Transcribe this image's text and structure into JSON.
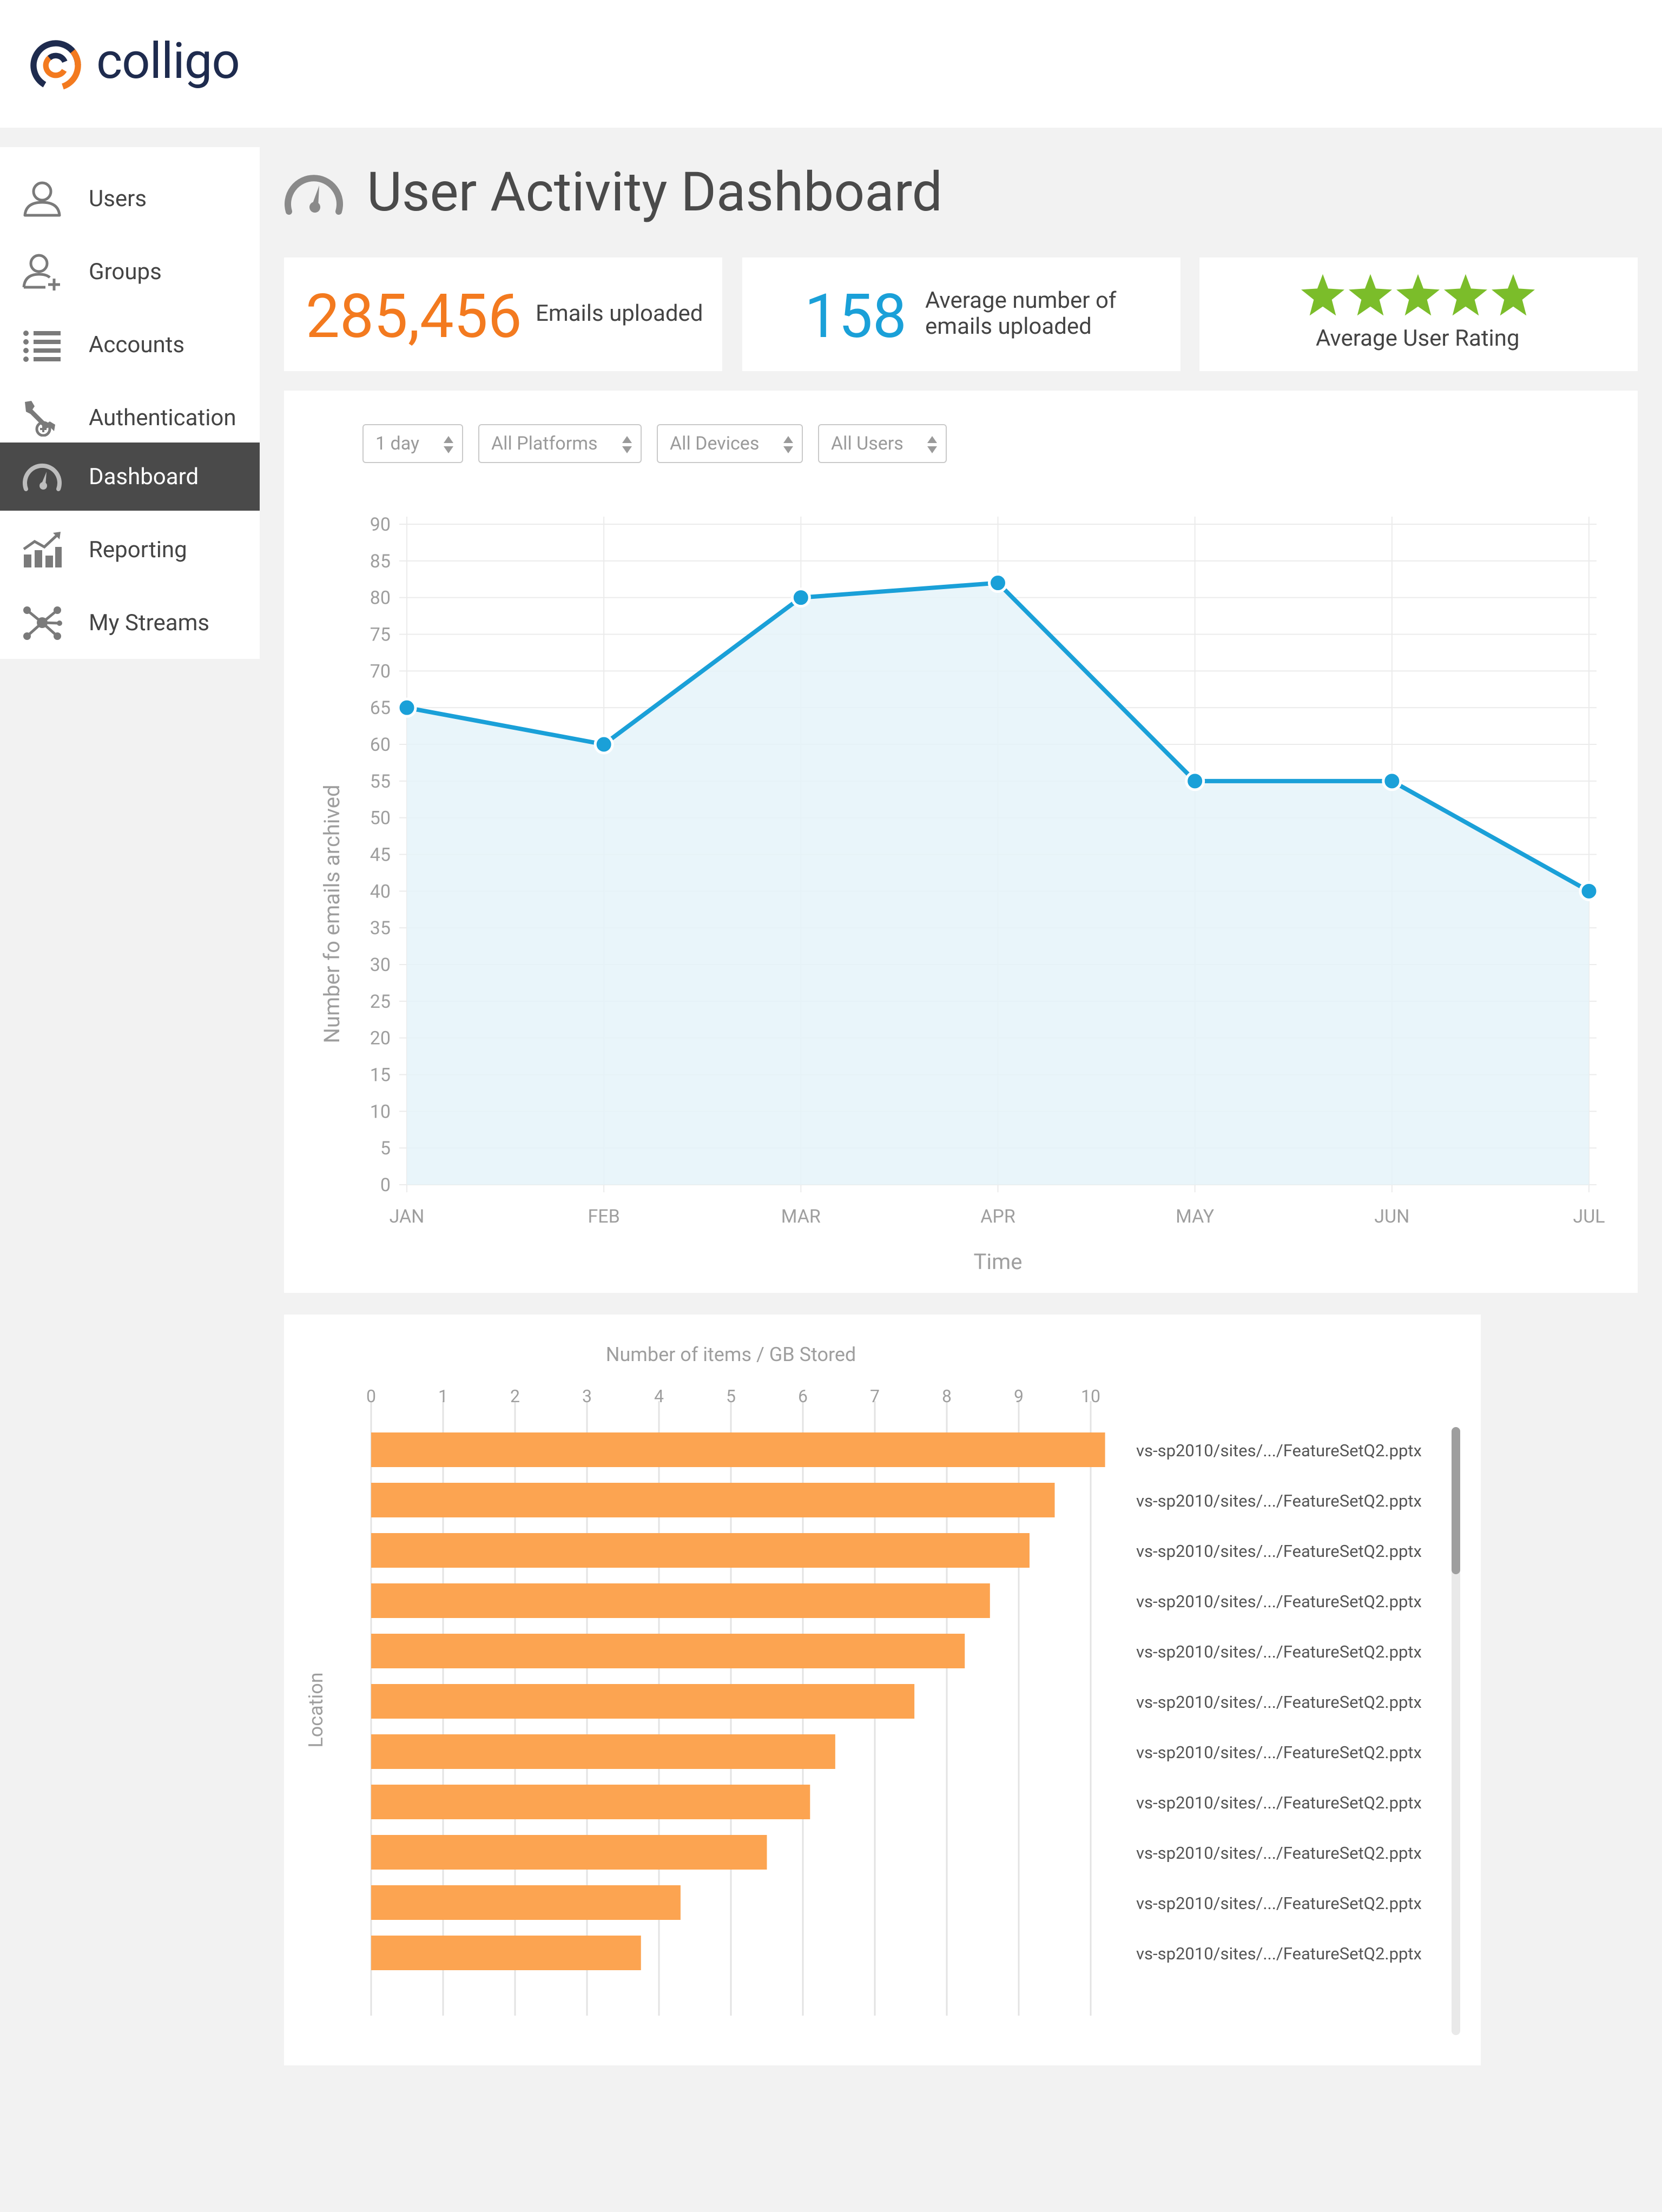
{
  "app": {
    "logo_text": "colligo"
  },
  "sidebar": {
    "items": [
      {
        "label": "Users",
        "icon": "user-icon",
        "active": false
      },
      {
        "label": "Groups",
        "icon": "add-user-icon",
        "active": false
      },
      {
        "label": "Accounts",
        "icon": "list-icon",
        "active": false
      },
      {
        "label": "Authentication",
        "icon": "wrench-icon",
        "active": false
      },
      {
        "label": "Dashboard",
        "icon": "gauge-icon",
        "active": true
      },
      {
        "label": "Reporting",
        "icon": "chart-icon",
        "active": false
      },
      {
        "label": "My Streams",
        "icon": "network-icon",
        "active": false
      }
    ]
  },
  "page": {
    "title": "User Activity Dashboard",
    "icon": "gauge-icon"
  },
  "stats": {
    "emails_uploaded": {
      "value": "285,456",
      "label": "Emails uploaded",
      "color": "#f37a1f"
    },
    "avg_emails": {
      "value": "158",
      "label_line1": "Average number of",
      "label_line2": "emails uploaded",
      "color": "#1aa0d8"
    },
    "rating": {
      "stars": 5,
      "label": "Average User Rating",
      "color": "#7bbd2a"
    }
  },
  "filters": [
    {
      "value": "1 day"
    },
    {
      "value": "All Platforms"
    },
    {
      "value": "All Devices"
    },
    {
      "value": "All Users"
    }
  ],
  "chart_data": [
    {
      "type": "area",
      "categories": [
        "JAN",
        "FEB",
        "MAR",
        "APR",
        "MAY",
        "JUN",
        "JUL"
      ],
      "values": [
        65,
        60,
        80,
        82,
        55,
        55,
        40
      ],
      "xlabel": "Time",
      "ylabel": "Number fo emails archived",
      "ylim": [
        0,
        90
      ],
      "yticks": [
        0,
        5,
        10,
        15,
        20,
        25,
        30,
        35,
        40,
        45,
        50,
        55,
        60,
        65,
        70,
        75,
        80,
        85,
        90
      ],
      "grid": true,
      "colors": {
        "line": "#1aa0d8",
        "fill": "#e5f3f9"
      }
    },
    {
      "type": "bar",
      "orientation": "horizontal",
      "title": "Number of items / GB Stored",
      "ylabel": "Location",
      "xlim": [
        0,
        10
      ],
      "xticks": [
        0,
        1,
        2,
        3,
        4,
        5,
        6,
        7,
        8,
        9,
        10
      ],
      "categories": [
        "vs-sp2010/sites/.../FeatureSetQ2.pptx",
        "vs-sp2010/sites/.../FeatureSetQ2.pptx",
        "vs-sp2010/sites/.../FeatureSetQ2.pptx",
        "vs-sp2010/sites/.../FeatureSetQ2.pptx",
        "vs-sp2010/sites/.../FeatureSetQ2.pptx",
        "vs-sp2010/sites/.../FeatureSetQ2.pptx",
        "vs-sp2010/sites/.../FeatureSetQ2.pptx",
        "vs-sp2010/sites/.../FeatureSetQ2.pptx",
        "vs-sp2010/sites/.../FeatureSetQ2.pptx",
        "vs-sp2010/sites/.../FeatureSetQ2.pptx",
        "vs-sp2010/sites/.../FeatureSetQ2.pptx"
      ],
      "values": [
        10.2,
        9.5,
        9.15,
        8.6,
        8.25,
        7.55,
        6.45,
        6.1,
        5.5,
        4.3,
        3.75
      ],
      "grid": true,
      "colors": {
        "bar": "#fca451"
      }
    }
  ]
}
